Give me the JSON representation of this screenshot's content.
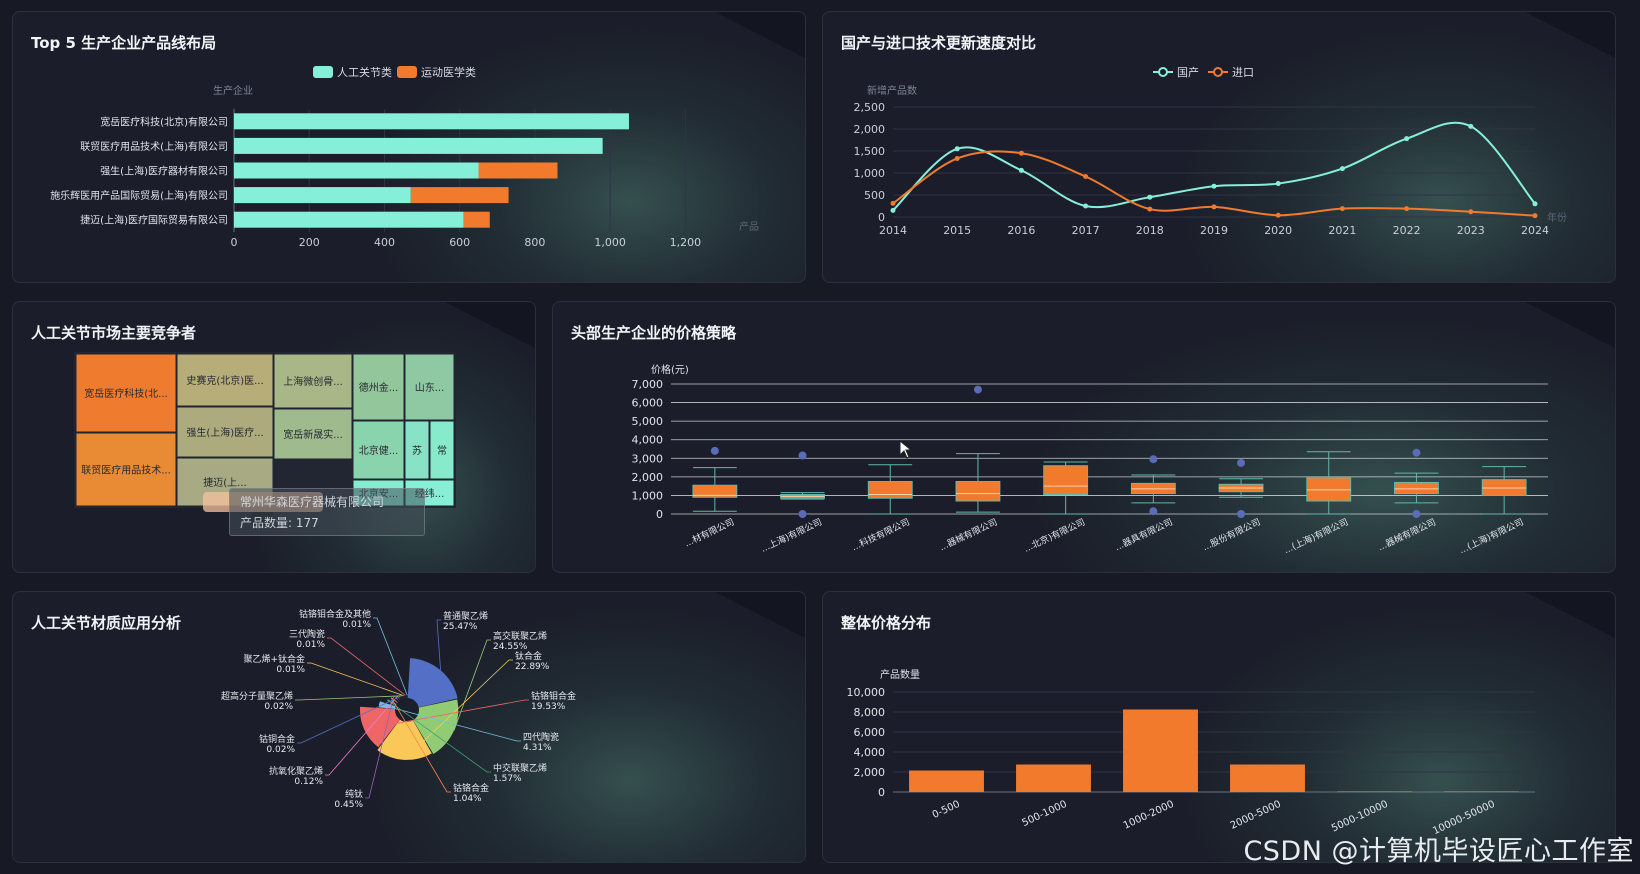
{
  "panels": {
    "p1_title": "Top 5 生产企业产品线布局",
    "p2_title": "国产与进口技术更新速度对比",
    "p3_title": "人工关节市场主要竞争者",
    "p4_title": "头部生产企业的价格策略",
    "p5_title": "人工关节材质应用分析",
    "p6_title": "整体价格分布"
  },
  "watermark": "CSDN @计算机毕设匠心工作室",
  "tooltip": {
    "name": "常州华森医疗器械有限公司",
    "value_label": "产品数量: 177"
  },
  "colors": {
    "teal": "#86efd9",
    "orange": "#f17a2c"
  },
  "chart_data": [
    {
      "type": "bar",
      "orientation": "horizontal",
      "stacked": true,
      "ylabel": "生产企业",
      "xlabel": "产品",
      "categories": [
        "捷迈(上海)医疗国际贸易有限公司",
        "施乐辉医用产品国际贸易(上海)有限公司",
        "强生(上海)医疗器材有限公司",
        "联贸医疗用品技术(上海)有限公司",
        "宽岳医疗科技(北京)有限公司"
      ],
      "series": [
        {
          "name": "人工关节类",
          "values": [
            610,
            470,
            650,
            980,
            1050
          ]
        },
        {
          "name": "运动医学类",
          "values": [
            70,
            260,
            210,
            0,
            0
          ]
        }
      ],
      "xlim": [
        0,
        1300
      ],
      "xticks": [
        "0",
        "200",
        "400",
        "600",
        "800",
        "1,000",
        "1,200"
      ],
      "legend": "top"
    },
    {
      "type": "line",
      "ylabel": "新增产品数",
      "xlabel": "年份",
      "x": [
        "2014",
        "2015",
        "2016",
        "2017",
        "2018",
        "2019",
        "2020",
        "2021",
        "2022",
        "2023",
        "2024"
      ],
      "series": [
        {
          "name": "国产",
          "values": [
            150,
            1550,
            1060,
            250,
            450,
            700,
            760,
            1100,
            1780,
            2060,
            300
          ]
        },
        {
          "name": "进口",
          "values": [
            310,
            1330,
            1450,
            920,
            180,
            230,
            40,
            190,
            190,
            120,
            30
          ]
        }
      ],
      "ylim": [
        0,
        2500
      ],
      "yticks": [
        "0",
        "500",
        "1,000",
        "1,500",
        "2,000",
        "2,500"
      ],
      "legend": "top"
    },
    {
      "type": "treemap",
      "items": [
        {
          "label": "宽岳医疗科技(北..."
        },
        {
          "label": "联贸医疗用品技术..."
        },
        {
          "label": "史赛克(北京)医..."
        },
        {
          "label": "强生(上海)医疗..."
        },
        {
          "label": "捷迈(上..."
        },
        {
          "label": "上海微创骨..."
        },
        {
          "label": "宽岳新晟实..."
        },
        {
          "label": "德州金..."
        },
        {
          "label": "山东..."
        },
        {
          "label": "北京健..."
        },
        {
          "label": "苏"
        },
        {
          "label": "常"
        },
        {
          "label": "北京安..."
        },
        {
          "label": "经纬..."
        }
      ]
    },
    {
      "type": "boxplot",
      "ylabel": "价格(元)",
      "ylim": [
        0,
        7000
      ],
      "yticks": [
        "0",
        "1,000",
        "2,000",
        "3,000",
        "4,000",
        "5,000",
        "6,000",
        "7,000"
      ],
      "categories": [
        "...材有限公司",
        "...上海)有限公司",
        "...科技有限公司",
        "...器械有限公司",
        "...北京)有限公司",
        "...器具有限公司",
        "...股份有限公司",
        "...(上海)有限公司",
        "...器械有限公司",
        "...(上海)有限公司"
      ],
      "boxes": [
        {
          "min": 150,
          "q1": 900,
          "median": 1000,
          "q3": 1550,
          "max": 2500,
          "outliers": [
            3400
          ]
        },
        {
          "min": 800,
          "q1": 850,
          "median": 950,
          "q3": 1050,
          "max": 1150,
          "outliers": [
            3150,
            0
          ]
        },
        {
          "min": 0,
          "q1": 850,
          "median": 1050,
          "q3": 1750,
          "max": 2650,
          "outliers": []
        },
        {
          "min": 100,
          "q1": 700,
          "median": 1100,
          "q3": 1750,
          "max": 3250,
          "outliers": [
            6700
          ]
        },
        {
          "min": 0,
          "q1": 1050,
          "median": 1500,
          "q3": 2600,
          "max": 2800,
          "outliers": []
        },
        {
          "min": 600,
          "q1": 1100,
          "median": 1350,
          "q3": 1650,
          "max": 2100,
          "outliers": [
            2950,
            150
          ]
        },
        {
          "min": 900,
          "q1": 1200,
          "median": 1400,
          "q3": 1600,
          "max": 1900,
          "outliers": [
            2750,
            0
          ]
        },
        {
          "min": 0,
          "q1": 700,
          "median": 1300,
          "q3": 1950,
          "max": 3350,
          "outliers": []
        },
        {
          "min": 600,
          "q1": 1100,
          "median": 1350,
          "q3": 1700,
          "max": 2200,
          "outliers": [
            3300,
            0
          ]
        },
        {
          "min": 0,
          "q1": 1000,
          "median": 1400,
          "q3": 1850,
          "max": 2550,
          "outliers": []
        }
      ]
    },
    {
      "type": "pie",
      "rose": true,
      "slices": [
        {
          "name": "普通聚乙烯",
          "pct": "25.47%",
          "value": 25.47
        },
        {
          "name": "高交联聚乙烯",
          "pct": "24.55%",
          "value": 24.55
        },
        {
          "name": "钛合金",
          "pct": "22.89%",
          "value": 22.89
        },
        {
          "name": "钴铬钼合金",
          "pct": "19.53%",
          "value": 19.53
        },
        {
          "name": "四代陶瓷",
          "pct": "4.31%",
          "value": 4.31
        },
        {
          "name": "中交联聚乙烯",
          "pct": "1.57%",
          "value": 1.57
        },
        {
          "name": "钴铬合金",
          "pct": "1.04%",
          "value": 1.04
        },
        {
          "name": "纯钛",
          "pct": "0.45%",
          "value": 0.45
        },
        {
          "name": "抗氧化聚乙烯",
          "pct": "0.12%",
          "value": 0.12
        },
        {
          "name": "钴铜合金",
          "pct": "0.02%",
          "value": 0.02
        },
        {
          "name": "超高分子量聚乙烯",
          "pct": "0.02%",
          "value": 0.02
        },
        {
          "name": "聚乙烯+钛合金",
          "pct": "0.01%",
          "value": 0.01
        },
        {
          "name": "三代陶瓷",
          "pct": "0.01%",
          "value": 0.01
        },
        {
          "name": "钴铬钼合金及其他",
          "pct": "0.01%",
          "value": 0.01
        }
      ]
    },
    {
      "type": "bar",
      "ylabel": "产品数量",
      "categories": [
        "0-500",
        "500-1000",
        "1000-2000",
        "2000-5000",
        "5000-10000",
        "10000-50000"
      ],
      "values": [
        2150,
        2750,
        8250,
        2750,
        60,
        60
      ],
      "ylim": [
        0,
        10000
      ],
      "yticks": [
        "0",
        "2,000",
        "4,000",
        "6,000",
        "8,000",
        "10,000"
      ]
    }
  ]
}
